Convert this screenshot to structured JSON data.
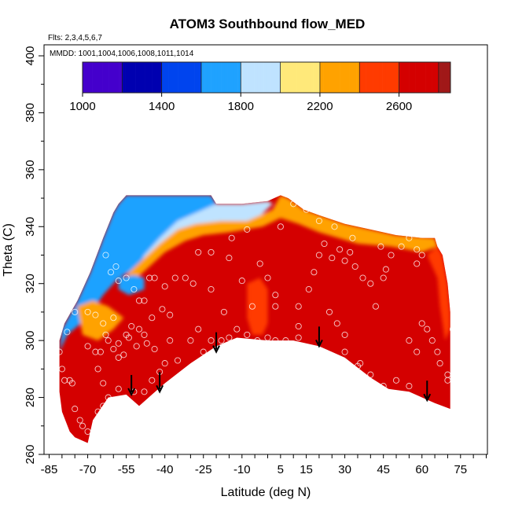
{
  "chart_data": {
    "type": "heatmap",
    "title": "ATOM3 Southbound flow_MED",
    "subtitle_flights": "Flts: 2,3,4,5,6,7",
    "subtitle_dates": "MMDD: 1001,1004,1006,1008,1011,1014",
    "xlabel": "Latitude (deg N)",
    "ylabel": "Theta (C)",
    "xlim": [
      -85,
      85
    ],
    "ylim": [
      260,
      400
    ],
    "x_tick_labels": [
      "-85",
      "-70",
      "-55",
      "-40",
      "-25",
      "-10",
      "5",
      "15",
      "30",
      "45",
      "60",
      "75"
    ],
    "x_tick_values": [
      -85,
      -70,
      -55,
      -40,
      -25,
      -10,
      5,
      15,
      30,
      45,
      60,
      75
    ],
    "x_minor_step": 5,
    "y_tick_labels": [
      "260",
      "280",
      "300",
      "320",
      "340",
      "360",
      "380",
      "400"
    ],
    "y_tick_values": [
      260,
      280,
      300,
      320,
      340,
      360,
      380,
      400
    ],
    "colorbar": {
      "tick_labels": [
        "1000",
        "1400",
        "1800",
        "2200",
        "2600"
      ],
      "tick_values": [
        1000,
        1400,
        1800,
        2200,
        2600
      ],
      "min": 1000,
      "max": 2860,
      "bins": [
        {
          "from": 1000,
          "to": 1200,
          "color": "#4400cc"
        },
        {
          "from": 1200,
          "to": 1400,
          "color": "#0000b0"
        },
        {
          "from": 1400,
          "to": 1600,
          "color": "#0044ee"
        },
        {
          "from": 1600,
          "to": 1800,
          "color": "#1fa2ff"
        },
        {
          "from": 1800,
          "to": 2000,
          "color": "#bfe3ff"
        },
        {
          "from": 2000,
          "to": 2200,
          "color": "#ffe97a"
        },
        {
          "from": 2200,
          "to": 2400,
          "color": "#ffa200"
        },
        {
          "from": 2400,
          "to": 2600,
          "color": "#ff3b00"
        },
        {
          "from": 2600,
          "to": 2800,
          "color": "#d40000"
        },
        {
          "from": 2800,
          "to": 2860,
          "color": "#a01818"
        }
      ]
    },
    "field": {
      "background_value": 2680,
      "bottom_boundary": [
        [
          -81,
          282
        ],
        [
          -80,
          275
        ],
        [
          -77,
          268
        ],
        [
          -75,
          266
        ],
        [
          -70,
          264
        ],
        [
          -68,
          272
        ],
        [
          -62,
          280
        ],
        [
          -55,
          281
        ],
        [
          -50,
          277
        ],
        [
          -45,
          281
        ],
        [
          -40,
          285
        ],
        [
          -30,
          292
        ],
        [
          -20,
          298
        ],
        [
          -12,
          301
        ],
        [
          0,
          300
        ],
        [
          10,
          300
        ],
        [
          20,
          298
        ],
        [
          30,
          294
        ],
        [
          40,
          287
        ],
        [
          47,
          283
        ],
        [
          55,
          282
        ],
        [
          65,
          278
        ],
        [
          71,
          276
        ]
      ],
      "top_boundary": [
        [
          -81,
          300
        ],
        [
          -79,
          306
        ],
        [
          -74,
          314
        ],
        [
          -69,
          324
        ],
        [
          -64,
          336
        ],
        [
          -60,
          345
        ],
        [
          -58,
          348
        ],
        [
          -55,
          351
        ],
        [
          -22,
          351
        ],
        [
          -20,
          348
        ],
        [
          -10,
          348
        ],
        [
          0,
          349
        ],
        [
          5,
          351
        ],
        [
          8,
          350
        ],
        [
          14,
          346
        ],
        [
          20,
          344
        ],
        [
          30,
          341
        ],
        [
          40,
          339
        ],
        [
          50,
          337
        ],
        [
          60,
          336
        ],
        [
          65,
          336
        ],
        [
          66,
          333
        ],
        [
          68,
          330
        ],
        [
          70,
          320
        ],
        [
          71,
          310
        ]
      ],
      "regions": [
        {
          "value": 1700,
          "polygon": [
            [
              -81,
              296
            ],
            [
              -80,
              304
            ],
            [
              -74,
              314
            ],
            [
              -69,
              324
            ],
            [
              -64,
              336
            ],
            [
              -60,
              345
            ],
            [
              -58,
              348
            ],
            [
              -55,
              351
            ],
            [
              -22,
              351
            ],
            [
              -20,
              348
            ],
            [
              -10,
              348
            ],
            [
              0,
              349
            ],
            [
              2,
              348
            ],
            [
              -5,
              342
            ],
            [
              -18,
              342
            ],
            [
              -30,
              340
            ],
            [
              -40,
              334
            ],
            [
              -45,
              328
            ],
            [
              -50,
              326
            ],
            [
              -58,
              322
            ],
            [
              -64,
              316
            ],
            [
              -70,
              308
            ],
            [
              -78,
              302
            ]
          ]
        },
        {
          "value": 1950,
          "polygon": [
            [
              -50,
              326
            ],
            [
              -45,
              329
            ],
            [
              -40,
              334
            ],
            [
              -30,
              340
            ],
            [
              -18,
              342
            ],
            [
              -5,
              342
            ],
            [
              2,
              348
            ],
            [
              0,
              349
            ],
            [
              -10,
              348
            ],
            [
              -20,
              348
            ],
            [
              -25,
              346
            ],
            [
              -35,
              342
            ],
            [
              -42,
              336
            ],
            [
              -48,
              330
            ]
          ]
        },
        {
          "value": 2300,
          "polygon": [
            [
              -55,
              323
            ],
            [
              -48,
              329
            ],
            [
              -42,
              334
            ],
            [
              -35,
              339
            ],
            [
              -28,
              341
            ],
            [
              -18,
              342
            ],
            [
              -8,
              342
            ],
            [
              2,
              346
            ],
            [
              5,
              351
            ],
            [
              8,
              350
            ],
            [
              14,
              346
            ],
            [
              30,
              341
            ],
            [
              50,
              337
            ],
            [
              65,
              336
            ],
            [
              66,
              333
            ],
            [
              60,
              331
            ],
            [
              48,
              333
            ],
            [
              35,
              334
            ],
            [
              20,
              338
            ],
            [
              12,
              341
            ],
            [
              5,
              343
            ],
            [
              -2,
              340
            ],
            [
              -15,
              338
            ],
            [
              -25,
              337
            ],
            [
              -32,
              335
            ],
            [
              -40,
              331
            ],
            [
              -46,
              326
            ],
            [
              -52,
              321
            ]
          ]
        },
        {
          "value": 2450,
          "polygon": [
            [
              66,
              333
            ],
            [
              68,
              330
            ],
            [
              70,
              320
            ],
            [
              71,
              310
            ],
            [
              71,
              304
            ],
            [
              69,
              300
            ],
            [
              67,
              312
            ],
            [
              66,
              322
            ],
            [
              62,
              330
            ]
          ]
        },
        {
          "value": 2300,
          "polygon": [
            [
              -72,
              302
            ],
            [
              -66,
              300
            ],
            [
              -60,
              304
            ],
            [
              -56,
              308
            ],
            [
              -62,
              312
            ],
            [
              -68,
              314
            ],
            [
              -74,
              312
            ]
          ]
        },
        {
          "value": 1700,
          "polygon": [
            [
              -58,
              322
            ],
            [
              -52,
              323
            ],
            [
              -48,
              322
            ],
            [
              -48,
              318
            ],
            [
              -54,
              316
            ],
            [
              -58,
              318
            ]
          ]
        },
        {
          "value": 2500,
          "polygon": [
            [
              -8,
              320
            ],
            [
              -3,
              322
            ],
            [
              0,
              318
            ],
            [
              0,
              306
            ],
            [
              -2,
              302
            ],
            [
              -6,
              302
            ],
            [
              -8,
              308
            ]
          ]
        },
        {
          "value": 2780,
          "polygon": [
            [
              15,
              326
            ],
            [
              30,
              328
            ],
            [
              45,
              325
            ],
            [
              55,
              320
            ],
            [
              58,
              312
            ],
            [
              50,
              306
            ],
            [
              35,
              308
            ],
            [
              22,
              314
            ],
            [
              15,
              320
            ]
          ]
        }
      ]
    },
    "points": [
      [
        -81,
        296
      ],
      [
        -80,
        290
      ],
      [
        -79,
        286
      ],
      [
        -77,
        286
      ],
      [
        -76,
        285
      ],
      [
        -75,
        276
      ],
      [
        -73,
        272
      ],
      [
        -72,
        270
      ],
      [
        -70,
        268
      ],
      [
        -68,
        265
      ],
      [
        -78,
        303
      ],
      [
        -75,
        310
      ],
      [
        -70,
        310
      ],
      [
        -67,
        309
      ],
      [
        -64,
        306
      ],
      [
        -63,
        330
      ],
      [
        -61,
        324
      ],
      [
        -59,
        326
      ],
      [
        -58,
        321
      ],
      [
        -55,
        322
      ],
      [
        -52,
        318
      ],
      [
        -50,
        314
      ],
      [
        -48,
        314
      ],
      [
        -46,
        322
      ],
      [
        -44,
        322
      ],
      [
        -40,
        319
      ],
      [
        -36,
        322
      ],
      [
        -32,
        322
      ],
      [
        -29,
        320
      ],
      [
        -70,
        298
      ],
      [
        -67,
        296
      ],
      [
        -65,
        296
      ],
      [
        -62,
        300
      ],
      [
        -60,
        297
      ],
      [
        -58,
        294
      ],
      [
        -56,
        295
      ],
      [
        -55,
        302
      ],
      [
        -53,
        305
      ],
      [
        -50,
        304
      ],
      [
        -48,
        302
      ],
      [
        -45,
        308
      ],
      [
        -66,
        290
      ],
      [
        -64,
        285
      ],
      [
        -62,
        280
      ],
      [
        -58,
        283
      ],
      [
        -55,
        279
      ],
      [
        -52,
        282
      ],
      [
        -48,
        282
      ],
      [
        -45,
        286
      ],
      [
        -42,
        289
      ],
      [
        -40,
        292
      ],
      [
        -63,
        302
      ],
      [
        -60,
        308
      ],
      [
        -58,
        299
      ],
      [
        -54,
        301
      ],
      [
        -51,
        298
      ],
      [
        -47,
        299
      ],
      [
        -44,
        297
      ],
      [
        -41,
        311
      ],
      [
        -38,
        309
      ],
      [
        -66,
        275
      ],
      [
        -64,
        277
      ],
      [
        -61,
        271
      ],
      [
        -56,
        273
      ],
      [
        -50,
        272
      ],
      [
        -46,
        276
      ],
      [
        -38,
        300
      ],
      [
        -35,
        293
      ],
      [
        -30,
        300
      ],
      [
        -27,
        304
      ],
      [
        -25,
        296
      ],
      [
        -22,
        300
      ],
      [
        -18,
        300
      ],
      [
        -15,
        301
      ],
      [
        -27,
        331
      ],
      [
        -22,
        331
      ],
      [
        -15,
        329
      ],
      [
        -10,
        321
      ],
      [
        -6,
        312
      ],
      [
        -3,
        327
      ],
      [
        0,
        322
      ],
      [
        3,
        316
      ],
      [
        3,
        312
      ],
      [
        5,
        340
      ],
      [
        -22,
        318
      ],
      [
        -17,
        310
      ],
      [
        -12,
        304
      ],
      [
        -8,
        302
      ],
      [
        -4,
        300
      ],
      [
        0,
        301
      ],
      [
        3,
        300
      ],
      [
        7,
        300
      ],
      [
        12,
        301
      ],
      [
        16,
        297
      ],
      [
        12,
        305
      ],
      [
        12,
        312
      ],
      [
        16,
        318
      ],
      [
        18,
        324
      ],
      [
        20,
        330
      ],
      [
        22,
        334
      ],
      [
        25,
        329
      ],
      [
        28,
        332
      ],
      [
        30,
        328
      ],
      [
        32,
        331
      ],
      [
        34,
        326
      ],
      [
        37,
        322
      ],
      [
        40,
        320
      ],
      [
        42,
        312
      ],
      [
        45,
        322
      ],
      [
        46,
        325
      ],
      [
        48,
        330
      ],
      [
        52,
        333
      ],
      [
        55,
        336
      ],
      [
        58,
        332
      ],
      [
        60,
        330
      ],
      [
        24,
        310
      ],
      [
        27,
        306
      ],
      [
        30,
        302
      ],
      [
        30,
        296
      ],
      [
        35,
        291
      ],
      [
        36,
        292
      ],
      [
        40,
        288
      ],
      [
        45,
        284
      ],
      [
        50,
        286
      ],
      [
        55,
        284
      ],
      [
        58,
        296
      ],
      [
        55,
        300
      ],
      [
        60,
        306
      ],
      [
        62,
        304
      ],
      [
        64,
        300
      ],
      [
        66,
        296
      ],
      [
        67,
        292
      ],
      [
        70,
        288
      ],
      [
        70,
        286
      ],
      [
        72,
        304
      ],
      [
        10,
        348
      ],
      [
        15,
        346
      ],
      [
        20,
        342
      ],
      [
        26,
        340
      ],
      [
        33,
        336
      ],
      [
        44,
        333
      ],
      [
        58,
        327
      ],
      [
        -8,
        339
      ],
      [
        -14,
        336
      ]
    ],
    "arrows": [
      {
        "x": -53,
        "theta": 281
      },
      {
        "x": -42,
        "theta": 282
      },
      {
        "x": -20,
        "theta": 296
      },
      {
        "x": 20,
        "theta": 298
      },
      {
        "x": 62,
        "theta": 279
      }
    ]
  }
}
